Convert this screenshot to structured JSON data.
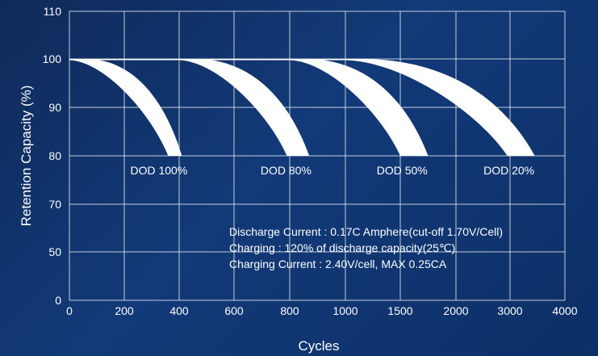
{
  "chart_data": {
    "type": "area",
    "xlabel": "Cycles",
    "ylabel": "Retention Capacity (%)",
    "x_tick_labels": [
      "0",
      "200",
      "400",
      "600",
      "800",
      "1000",
      "1500",
      "2000",
      "3000",
      "4000"
    ],
    "y_tick_labels": [
      "0",
      "50",
      "70",
      "80",
      "90",
      "100",
      "110"
    ],
    "grid": true,
    "colors": {
      "band": "#ffffff",
      "grid": "#ffffff",
      "background": "#123a78"
    },
    "series": [
      {
        "name": "DOD 100%",
        "upper_end_cycles": 410,
        "lower_end_cycles": 360,
        "start_percent": 100,
        "end_percent": 80,
        "plateau_end_cycles": 0
      },
      {
        "name": "DOD 80%",
        "upper_end_cycles": 870,
        "lower_end_cycles": 790,
        "start_percent": 100,
        "end_percent": 80,
        "plateau_end_cycles": 400
      },
      {
        "name": "DOD 50%",
        "upper_end_cycles": 1750,
        "lower_end_cycles": 1500,
        "start_percent": 100,
        "end_percent": 80,
        "plateau_end_cycles": 800
      },
      {
        "name": "DOD 20%",
        "upper_end_cycles": 3450,
        "lower_end_cycles": 2950,
        "start_percent": 100,
        "end_percent": 80,
        "plateau_end_cycles": 1000
      }
    ],
    "annotations": [
      "Discharge Current : 0.17C Amphere(cut-off 1.70V/Cell)",
      "Charging : 120% of discharge capacity(25℃)",
      "Charging Current : 2.40V/cell, MAX 0.25CA"
    ]
  }
}
